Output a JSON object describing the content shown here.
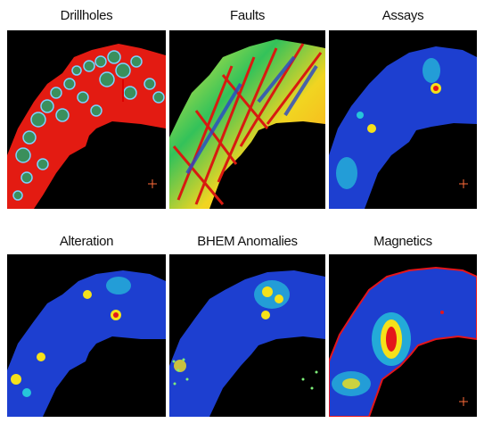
{
  "panels": [
    {
      "title": "Drillholes"
    },
    {
      "title": "Faults"
    },
    {
      "title": "Assays"
    },
    {
      "title": "Alteration"
    },
    {
      "title": "BHEM Anomalies"
    },
    {
      "title": "Magnetics"
    }
  ],
  "colors": {
    "background": "#000000",
    "drillholes_base": "#e31b12",
    "heat_low": "#1d3fd0",
    "heat_mid": "#26c6da",
    "heat_high": "#f5e11a",
    "heat_peak": "#e4151b"
  }
}
